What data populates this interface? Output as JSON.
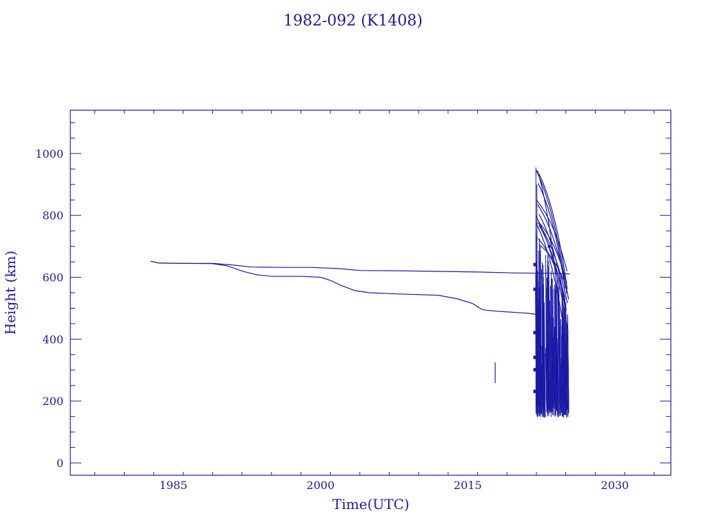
{
  "colors": {
    "ink": "#1a1aa6",
    "background": "#ffffff"
  },
  "chart_data": {
    "type": "line",
    "title": "1982-092 (K1408)",
    "xlabel": "Time(UTC)",
    "ylabel": "Height (km)",
    "xlim": [
      1974.5,
      2035.7
    ],
    "ylim": [
      -40,
      1140
    ],
    "xticks": [
      1985,
      2000,
      2015,
      2030
    ],
    "xtick_labels": [
      "1985",
      "2000",
      "2015",
      "2030"
    ],
    "x_minor_step": 3,
    "yticks": [
      0,
      200,
      400,
      600,
      800,
      1000
    ],
    "ytick_labels": [
      "0",
      "200",
      "400",
      "600",
      "800",
      "1000"
    ],
    "y_minor_step": 50,
    "grid": false,
    "legend": "none",
    "series": [
      {
        "points": [
          [
            1982.7,
            652
          ],
          [
            1983.5,
            646
          ],
          [
            1986,
            645
          ],
          [
            1989,
            645
          ],
          [
            1991,
            640
          ],
          [
            1993,
            633
          ],
          [
            1996,
            632
          ],
          [
            1999,
            632
          ],
          [
            2002,
            628
          ],
          [
            2004,
            622
          ],
          [
            2008,
            621
          ],
          [
            2012,
            619
          ],
          [
            2016,
            617
          ],
          [
            2020,
            614
          ],
          [
            2023,
            613
          ],
          [
            2025.4,
            611
          ]
        ]
      },
      {
        "points": [
          [
            1982.7,
            652
          ],
          [
            1983.5,
            646
          ],
          [
            1986,
            645
          ],
          [
            1989,
            644
          ],
          [
            1990.5,
            637
          ],
          [
            1992,
            620
          ],
          [
            1993.5,
            608
          ],
          [
            1995,
            603
          ],
          [
            1998,
            603
          ],
          [
            2000,
            600
          ],
          [
            2001,
            590
          ],
          [
            2002,
            575
          ],
          [
            2003.5,
            557
          ],
          [
            2005,
            550
          ],
          [
            2008,
            546
          ],
          [
            2012,
            542
          ],
          [
            2014,
            530
          ],
          [
            2015.5,
            515
          ],
          [
            2016.5,
            495
          ],
          [
            2018,
            490
          ],
          [
            2021,
            484
          ],
          [
            2022.1,
            480
          ]
        ]
      },
      {
        "points": [
          [
            2017.8,
            325
          ],
          [
            2017.8,
            258
          ]
        ]
      }
    ]
  }
}
